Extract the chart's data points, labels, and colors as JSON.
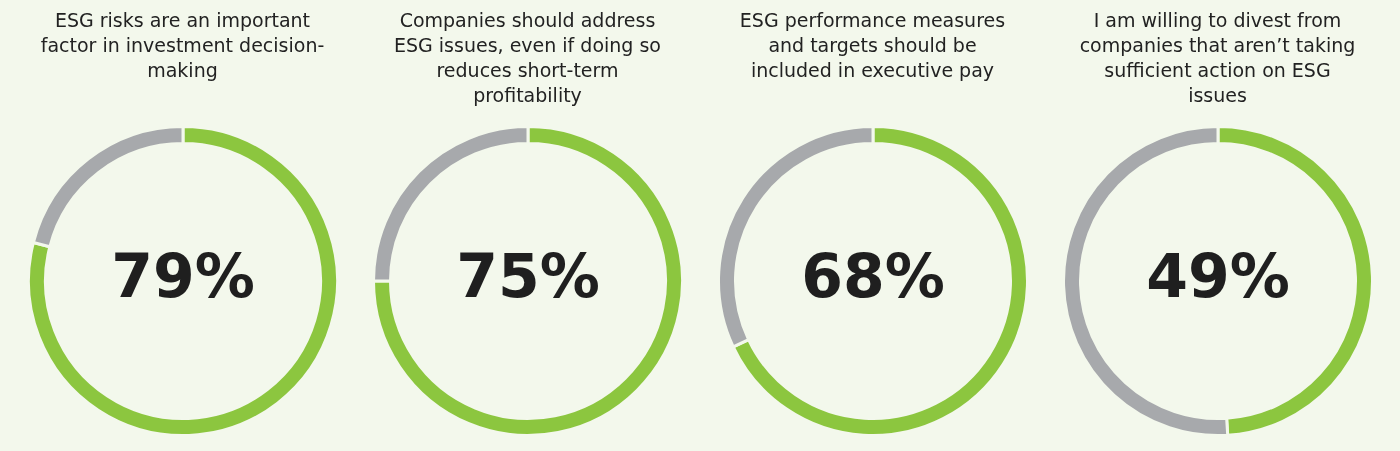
{
  "chart_data": [
    {
      "type": "donut",
      "title": "ESG risks are an important factor in investment decision-making",
      "categories": [
        null,
        null
      ],
      "values": [
        79,
        21
      ],
      "colors": [
        "#8cc63f",
        "#a7a9ac"
      ],
      "value_labels": [
        "79%",
        null
      ]
    },
    {
      "type": "donut",
      "title": "Companies should address ESG issues, even if doing so reduces short-term profitability",
      "categories": [
        null,
        null
      ],
      "values": [
        75,
        25
      ],
      "colors": [
        "#8cc63f",
        "#a7a9ac"
      ],
      "value_labels": [
        "75%",
        null
      ]
    },
    {
      "type": "donut",
      "title": "ESG performance measures and targets should be included in executive pay",
      "categories": [
        null,
        null
      ],
      "values": [
        68,
        32
      ],
      "colors": [
        "#8cc63f",
        "#a7a9ac"
      ],
      "value_labels": [
        "68%",
        null
      ]
    },
    {
      "type": "donut",
      "title": "I am willing to divest from companies that aren’t taking sufficient action on ESG issues",
      "categories": [
        null,
        null
      ],
      "values": [
        49,
        51
      ],
      "colors": [
        "#8cc63f",
        "#a7a9ac"
      ],
      "value_labels": [
        "49%",
        null
      ]
    }
  ]
}
